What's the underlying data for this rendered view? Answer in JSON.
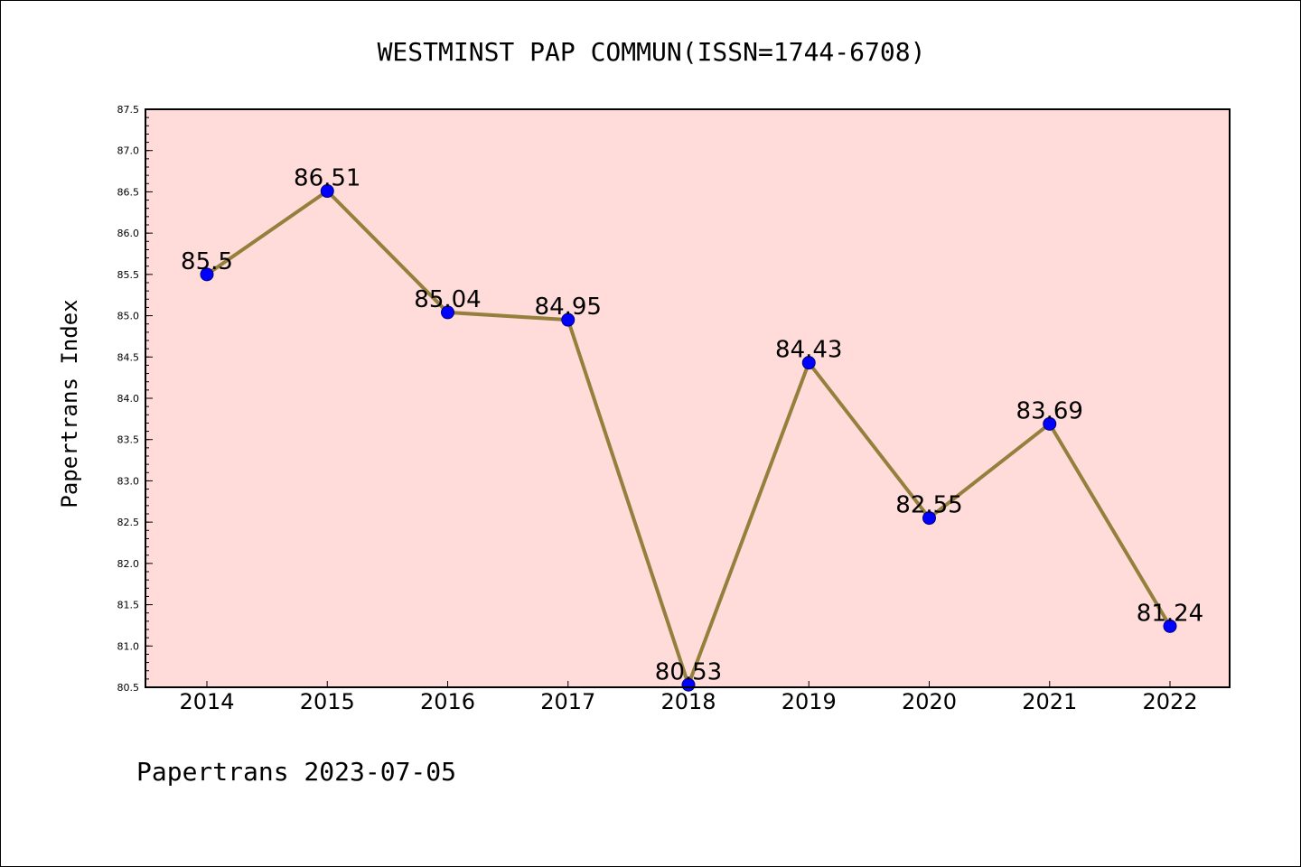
{
  "chart_data": {
    "type": "line",
    "title": "WESTMINST PAP COMMUN(ISSN=1744-6708)",
    "ylabel": "Papertrans Index",
    "xlabel": "",
    "footer": "Papertrans 2023-07-05",
    "categories": [
      "2014",
      "2015",
      "2016",
      "2017",
      "2018",
      "2019",
      "2020",
      "2021",
      "2022"
    ],
    "series": [
      {
        "values": [
          85.5,
          86.51,
          85.04,
          84.95,
          80.53,
          84.43,
          82.55,
          83.69,
          81.24
        ],
        "data_labels": [
          "85.5",
          "86.51",
          "85.04",
          "84.95",
          "80.53",
          "84.43",
          "82.55",
          "83.69",
          "81.24"
        ]
      }
    ],
    "ylim": [
      80.5,
      87.5
    ],
    "yticks": [
      "80.5",
      "81.0",
      "81.5",
      "82.0",
      "82.5",
      "83.0",
      "83.5",
      "84.0",
      "84.5",
      "85.0",
      "85.5",
      "86.0",
      "86.5",
      "87.0",
      "87.5"
    ],
    "grid": false,
    "colors": {
      "plot_background": "#FFDCD9",
      "line": "#94803C",
      "marker": "#0000FF",
      "marker_edge": "#000080"
    }
  }
}
